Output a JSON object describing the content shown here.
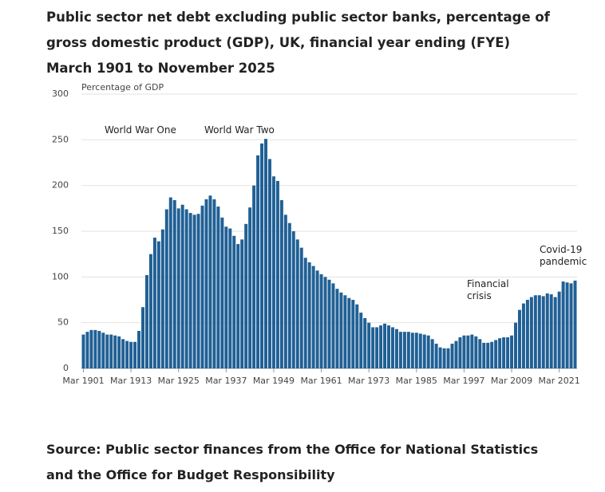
{
  "chart_data": {
    "type": "bar",
    "title": "Public sector net debt excluding public sector banks, percentage of gross domestic product (GDP), UK, financial year ending (FYE) March 1901 to November 2025",
    "y_axis_label": "Percentage of GDP",
    "source": "Source: Public sector finances from the Office for National Statistics and the Office for Budget Responsibility",
    "color": "#206095",
    "grid": true,
    "ylim": [
      0,
      300
    ],
    "yticks": [
      0,
      50,
      100,
      150,
      200,
      250,
      300
    ],
    "categories": [
      "Mar 1901",
      null,
      null,
      null,
      null,
      null,
      null,
      null,
      null,
      null,
      null,
      null,
      "Mar 1913",
      null,
      null,
      null,
      null,
      null,
      null,
      null,
      null,
      null,
      null,
      null,
      "Mar 1925",
      null,
      null,
      null,
      null,
      null,
      null,
      null,
      null,
      null,
      null,
      null,
      "Mar 1937",
      null,
      null,
      null,
      null,
      null,
      null,
      null,
      null,
      null,
      null,
      null,
      "Mar 1949",
      null,
      null,
      null,
      null,
      null,
      null,
      null,
      null,
      null,
      null,
      null,
      "Mar 1961",
      null,
      null,
      null,
      null,
      null,
      null,
      null,
      null,
      null,
      null,
      null,
      "Mar 1973",
      null,
      null,
      null,
      null,
      null,
      null,
      null,
      null,
      null,
      null,
      null,
      "Mar 1985",
      null,
      null,
      null,
      null,
      null,
      null,
      null,
      null,
      null,
      null,
      null,
      "Mar 1997",
      null,
      null,
      null,
      null,
      null,
      null,
      null,
      null,
      null,
      null,
      null,
      "Mar 2009",
      null,
      null,
      null,
      null,
      null,
      null,
      null,
      null,
      null,
      null,
      null,
      "Mar 2021",
      null,
      null,
      null,
      null
    ],
    "values": [
      37,
      40,
      42,
      42,
      41,
      39,
      37,
      37,
      36,
      35,
      32,
      30,
      29,
      29,
      41,
      67,
      102,
      125,
      143,
      139,
      152,
      174,
      187,
      184,
      175,
      179,
      174,
      170,
      168,
      169,
      178,
      185,
      189,
      185,
      177,
      165,
      155,
      153,
      145,
      136,
      141,
      158,
      176,
      200,
      233,
      246,
      251,
      229,
      210,
      205,
      184,
      168,
      159,
      150,
      141,
      132,
      121,
      116,
      112,
      107,
      103,
      100,
      97,
      93,
      87,
      83,
      80,
      77,
      75,
      70,
      61,
      55,
      50,
      45,
      45,
      47,
      49,
      47,
      45,
      43,
      40,
      40,
      40,
      39,
      39,
      38,
      37,
      36,
      32,
      27,
      23,
      22,
      22,
      27,
      30,
      34,
      36,
      36,
      37,
      35,
      32,
      28,
      28,
      29,
      31,
      33,
      34,
      34,
      36,
      50,
      64,
      71,
      75,
      78,
      80,
      80,
      79,
      82,
      81,
      78,
      84,
      95,
      94,
      93,
      96
    ],
    "annotations": [
      [
        "World War One"
      ],
      [
        "World War Two"
      ],
      [
        "Financial",
        "crisis"
      ],
      [
        "Covid-19",
        "pandemic"
      ]
    ]
  }
}
